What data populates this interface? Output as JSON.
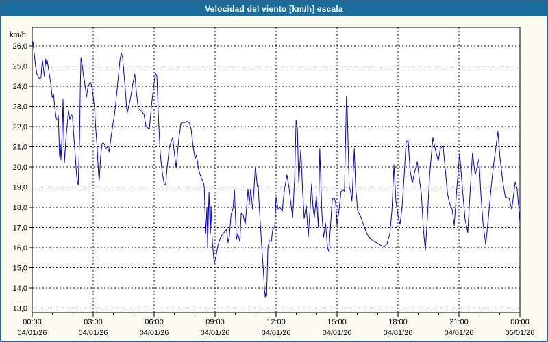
{
  "window": {
    "title": "Velocidad del viento [km/h] escala"
  },
  "colors": {
    "title_bar": "#1a6d9a",
    "title_text": "#ffffff",
    "background": "#fbfbf1",
    "plot_background": "#ffffff",
    "outer_border": "#2f6590",
    "axis": "#000000",
    "grid": "#000000",
    "line": "#0202cc"
  },
  "chart_data": {
    "type": "line",
    "title": "Velocidad del viento [km/h] escala",
    "ylabel": "km/h",
    "xlabel": "",
    "ylim": [
      13.0,
      26.0
    ],
    "y_tick_step": 1.0,
    "y_tick_labels": [
      "26,0",
      "25,0",
      "24,0",
      "23,0",
      "22,0",
      "21,0",
      "20,0",
      "19,0",
      "18,0",
      "17,0",
      "16,0",
      "15,0",
      "14,0",
      "13,0"
    ],
    "x_range_minutes": [
      0,
      1440
    ],
    "x_major_step_minutes": 180,
    "x_minor_step_minutes": 60,
    "x_ticks": [
      {
        "time": "00:00",
        "date": "04/01/26"
      },
      {
        "time": "03:00",
        "date": "04/01/26"
      },
      {
        "time": "06:00",
        "date": "04/01/26"
      },
      {
        "time": "09:00",
        "date": "04/01/26"
      },
      {
        "time": "12:00",
        "date": "04/01/26"
      },
      {
        "time": "15:00",
        "date": "04/01/26"
      },
      {
        "time": "18:00",
        "date": "04/01/26"
      },
      {
        "time": "21:00",
        "date": "04/01/26"
      },
      {
        "time": "00:00",
        "date": "05/01/26"
      }
    ],
    "grid": "dashed",
    "legend": "none",
    "series": [
      {
        "name": "wind_speed_kmh",
        "points": [
          [
            0,
            26.0
          ],
          [
            2,
            26.2
          ],
          [
            6,
            25.6
          ],
          [
            10,
            25.0
          ],
          [
            14,
            24.6
          ],
          [
            22,
            24.35
          ],
          [
            26,
            24.45
          ],
          [
            30,
            25.3
          ],
          [
            36,
            24.5
          ],
          [
            40,
            25.35
          ],
          [
            42,
            25.1
          ],
          [
            44,
            25.3
          ],
          [
            51,
            24.55
          ],
          [
            55,
            24.1
          ],
          [
            59,
            23.45
          ],
          [
            63,
            23.6
          ],
          [
            67,
            22.9
          ],
          [
            71,
            22.4
          ],
          [
            75,
            22.3
          ],
          [
            77,
            22.55
          ],
          [
            81,
            20.5
          ],
          [
            83,
            21.1
          ],
          [
            85,
            20.35
          ],
          [
            89,
            21.9
          ],
          [
            91,
            23.35
          ],
          [
            95,
            20.2
          ],
          [
            99,
            21.3
          ],
          [
            103,
            22.0
          ],
          [
            107,
            22.8
          ],
          [
            111,
            22.35
          ],
          [
            115,
            22.6
          ],
          [
            119,
            22.5
          ],
          [
            123,
            21.5
          ],
          [
            127,
            20.6
          ],
          [
            131,
            19.6
          ],
          [
            133,
            19.3
          ],
          [
            136,
            19.1
          ],
          [
            140,
            21.5
          ],
          [
            142,
            24.0
          ],
          [
            144,
            25.4
          ],
          [
            148,
            25.0
          ],
          [
            152,
            24.4
          ],
          [
            154,
            24.3
          ],
          [
            158,
            23.8
          ],
          [
            160,
            23.45
          ],
          [
            164,
            23.9
          ],
          [
            168,
            24.1
          ],
          [
            172,
            24.2
          ],
          [
            176,
            24.0
          ],
          [
            180,
            23.5
          ],
          [
            184,
            22.9
          ],
          [
            188,
            21.8
          ],
          [
            192,
            20.9
          ],
          [
            196,
            19.6
          ],
          [
            198,
            19.35
          ],
          [
            202,
            20.5
          ],
          [
            206,
            21.15
          ],
          [
            210,
            21.2
          ],
          [
            214,
            21.1
          ],
          [
            218,
            20.9
          ],
          [
            222,
            21.0
          ],
          [
            227,
            20.75
          ],
          [
            233,
            21.5
          ],
          [
            239,
            22.2
          ],
          [
            243,
            22.6
          ],
          [
            247,
            23.2
          ],
          [
            251,
            23.9
          ],
          [
            255,
            24.6
          ],
          [
            259,
            25.3
          ],
          [
            263,
            25.65
          ],
          [
            267,
            25.4
          ],
          [
            271,
            24.6
          ],
          [
            275,
            23.8
          ],
          [
            279,
            22.9
          ],
          [
            281,
            22.7
          ],
          [
            285,
            23.0
          ],
          [
            289,
            23.3
          ],
          [
            293,
            23.7
          ],
          [
            297,
            24.1
          ],
          [
            303,
            24.6
          ],
          [
            307,
            23.8
          ],
          [
            313,
            22.9
          ],
          [
            320,
            22.8
          ],
          [
            326,
            22.7
          ],
          [
            330,
            22.6
          ],
          [
            336,
            22.0
          ],
          [
            340,
            21.95
          ],
          [
            346,
            21.9
          ],
          [
            352,
            23.0
          ],
          [
            358,
            23.9
          ],
          [
            364,
            24.65
          ],
          [
            368,
            24.5
          ],
          [
            372,
            22.8
          ],
          [
            374,
            22.0
          ],
          [
            378,
            20.7
          ],
          [
            382,
            20.0
          ],
          [
            386,
            19.5
          ],
          [
            390,
            19.15
          ],
          [
            394,
            19.1
          ],
          [
            398,
            19.9
          ],
          [
            405,
            21.0
          ],
          [
            411,
            21.3
          ],
          [
            415,
            21.45
          ],
          [
            419,
            20.8
          ],
          [
            425,
            19.95
          ],
          [
            429,
            20.7
          ],
          [
            433,
            21.4
          ],
          [
            439,
            22.15
          ],
          [
            445,
            22.2
          ],
          [
            451,
            22.2
          ],
          [
            457,
            22.25
          ],
          [
            463,
            22.2
          ],
          [
            469,
            21.9
          ],
          [
            475,
            21.0
          ],
          [
            481,
            20.4
          ],
          [
            485,
            20.6
          ],
          [
            491,
            19.9
          ],
          [
            497,
            19.55
          ],
          [
            506,
            19.2
          ],
          [
            508,
            19.0
          ],
          [
            512,
            16.7
          ],
          [
            516,
            18.0
          ],
          [
            518,
            16.05
          ],
          [
            522,
            18.75
          ],
          [
            526,
            16.7
          ],
          [
            528,
            18.05
          ],
          [
            532,
            16.3
          ],
          [
            536,
            15.5
          ],
          [
            538,
            15.25
          ],
          [
            542,
            15.5
          ],
          [
            548,
            16.1
          ],
          [
            556,
            16.5
          ],
          [
            562,
            16.65
          ],
          [
            568,
            16.8
          ],
          [
            574,
            16.9
          ],
          [
            578,
            16.25
          ],
          [
            582,
            16.55
          ],
          [
            587,
            17.6
          ],
          [
            593,
            17.95
          ],
          [
            597,
            18.85
          ],
          [
            603,
            16.4
          ],
          [
            607,
            16.7
          ],
          [
            613,
            16.3
          ],
          [
            617,
            17.7
          ],
          [
            623,
            17.6
          ],
          [
            629,
            17.15
          ],
          [
            633,
            18.0
          ],
          [
            637,
            18.9
          ],
          [
            641,
            18.15
          ],
          [
            645,
            18.9
          ],
          [
            651,
            17.9
          ],
          [
            659,
            20.0
          ],
          [
            665,
            19.0
          ],
          [
            667,
            19.1
          ],
          [
            671,
            17.85
          ],
          [
            678,
            16.0
          ],
          [
            682,
            15.0
          ],
          [
            686,
            13.9
          ],
          [
            688,
            13.55
          ],
          [
            690,
            13.75
          ],
          [
            692,
            13.6
          ],
          [
            696,
            16.0
          ],
          [
            700,
            16.35
          ],
          [
            706,
            16.3
          ],
          [
            710,
            16.9
          ],
          [
            716,
            17.0
          ],
          [
            720,
            18.5
          ],
          [
            726,
            17.9
          ],
          [
            732,
            18.0
          ],
          [
            738,
            17.8
          ],
          [
            744,
            18.8
          ],
          [
            752,
            19.6
          ],
          [
            758,
            19.0
          ],
          [
            762,
            18.4
          ],
          [
            769,
            17.5
          ],
          [
            775,
            19.5
          ],
          [
            779,
            22.3
          ],
          [
            783,
            21.9
          ],
          [
            787,
            19.2
          ],
          [
            793,
            20.85
          ],
          [
            799,
            18.6
          ],
          [
            803,
            17.45
          ],
          [
            809,
            18.1
          ],
          [
            815,
            16.55
          ],
          [
            819,
            17.5
          ],
          [
            825,
            19.15
          ],
          [
            829,
            18.0
          ],
          [
            833,
            17.5
          ],
          [
            839,
            18.55
          ],
          [
            845,
            17.0
          ],
          [
            849,
            20.9
          ],
          [
            855,
            17.8
          ],
          [
            860,
            16.5
          ],
          [
            866,
            17.2
          ],
          [
            872,
            16.0
          ],
          [
            876,
            15.8
          ],
          [
            880,
            16.9
          ],
          [
            886,
            18.4
          ],
          [
            892,
            18.45
          ],
          [
            896,
            18.2
          ],
          [
            900,
            17.1
          ],
          [
            906,
            17.9
          ],
          [
            912,
            18.8
          ],
          [
            918,
            18.85
          ],
          [
            922,
            18.8
          ],
          [
            928,
            23.5
          ],
          [
            930,
            22.95
          ],
          [
            936,
            19.0
          ],
          [
            940,
            18.8
          ],
          [
            944,
            18.3
          ],
          [
            951,
            20.9
          ],
          [
            955,
            19.0
          ],
          [
            961,
            17.8
          ],
          [
            971,
            17.5
          ],
          [
            981,
            17.0
          ],
          [
            991,
            16.6
          ],
          [
            1001,
            16.4
          ],
          [
            1011,
            16.3
          ],
          [
            1021,
            16.2
          ],
          [
            1031,
            16.1
          ],
          [
            1040,
            16.05
          ],
          [
            1048,
            16.2
          ],
          [
            1056,
            16.7
          ],
          [
            1062,
            17.8
          ],
          [
            1068,
            20.1
          ],
          [
            1074,
            18.3
          ],
          [
            1080,
            17.6
          ],
          [
            1086,
            17.15
          ],
          [
            1092,
            18.0
          ],
          [
            1098,
            19.5
          ],
          [
            1104,
            21.25
          ],
          [
            1110,
            21.3
          ],
          [
            1116,
            19.8
          ],
          [
            1122,
            19.2
          ],
          [
            1130,
            19.8
          ],
          [
            1137,
            20.25
          ],
          [
            1143,
            19.4
          ],
          [
            1149,
            18.7
          ],
          [
            1155,
            16.9
          ],
          [
            1161,
            15.85
          ],
          [
            1167,
            17.5
          ],
          [
            1173,
            19.5
          ],
          [
            1183,
            21.45
          ],
          [
            1191,
            20.8
          ],
          [
            1199,
            20.3
          ],
          [
            1205,
            20.9
          ],
          [
            1213,
            21.05
          ],
          [
            1220,
            19.8
          ],
          [
            1226,
            18.7
          ],
          [
            1232,
            18.2
          ],
          [
            1240,
            17.9
          ],
          [
            1246,
            17.1
          ],
          [
            1254,
            19.0
          ],
          [
            1262,
            20.65
          ],
          [
            1270,
            19.0
          ],
          [
            1278,
            17.4
          ],
          [
            1286,
            16.75
          ],
          [
            1292,
            18.5
          ],
          [
            1300,
            20.7
          ],
          [
            1308,
            19.6
          ],
          [
            1319,
            20.4
          ],
          [
            1325,
            18.6
          ],
          [
            1331,
            17.2
          ],
          [
            1339,
            16.15
          ],
          [
            1347,
            17.5
          ],
          [
            1355,
            19.0
          ],
          [
            1363,
            20.2
          ],
          [
            1375,
            21.75
          ],
          [
            1381,
            20.5
          ],
          [
            1389,
            19.3
          ],
          [
            1397,
            18.5
          ],
          [
            1408,
            18.45
          ],
          [
            1416,
            17.9
          ],
          [
            1426,
            19.25
          ],
          [
            1432,
            18.9
          ],
          [
            1440,
            17.25
          ]
        ]
      }
    ]
  }
}
